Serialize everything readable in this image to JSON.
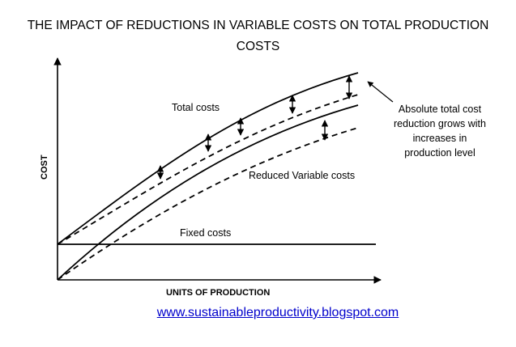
{
  "title": {
    "line1": "THE IMPACT OF REDUCTIONS IN VARIABLE COSTS ON TOTAL PRODUCTION",
    "line2": "COSTS"
  },
  "axes": {
    "ylabel": "COST",
    "xlabel": "UNITS OF PRODUCTION"
  },
  "curves": {
    "total": "Total costs",
    "reduced_variable": "Reduced Variable costs",
    "fixed": "Fixed costs"
  },
  "annotation": {
    "lines": [
      "Absolute total cost",
      "reduction grows with",
      "increases in",
      "production level"
    ]
  },
  "link": "www.sustainableproductivity.blogspot.com"
}
